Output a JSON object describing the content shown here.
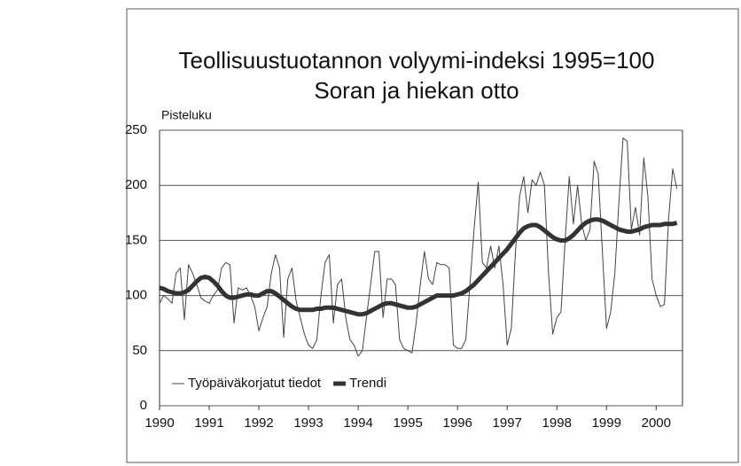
{
  "chart_data": {
    "type": "line",
    "title": "Teollisuustuotannon volyymi-indeksi 1995=100",
    "subtitle": "Soran ja hiekan otto",
    "y_label": "Pisteluku",
    "xlim": [
      1990,
      2000.53
    ],
    "xticks": [
      1990,
      1991,
      1992,
      1993,
      1994,
      1995,
      1996,
      1997,
      1998,
      1999,
      2000
    ],
    "ylim": [
      0,
      250
    ],
    "yticks": [
      0,
      50,
      100,
      150,
      200,
      250
    ],
    "grid": true,
    "legend": "lower-left",
    "x": [
      1990,
      1990.083,
      1990.167,
      1990.25,
      1990.333,
      1990.417,
      1990.5,
      1990.583,
      1990.667,
      1990.75,
      1990.833,
      1990.917,
      1991,
      1991.083,
      1991.167,
      1991.25,
      1991.333,
      1991.417,
      1991.5,
      1991.583,
      1991.667,
      1991.75,
      1991.833,
      1991.917,
      1992,
      1992.083,
      1992.167,
      1992.25,
      1992.333,
      1992.417,
      1992.5,
      1992.583,
      1992.667,
      1992.75,
      1992.833,
      1992.917,
      1993,
      1993.083,
      1993.167,
      1993.25,
      1993.333,
      1993.417,
      1993.5,
      1993.583,
      1993.667,
      1993.75,
      1993.833,
      1993.917,
      1994,
      1994.083,
      1994.167,
      1994.25,
      1994.333,
      1994.417,
      1994.5,
      1994.583,
      1994.667,
      1994.75,
      1994.833,
      1994.917,
      1995,
      1995.083,
      1995.167,
      1995.25,
      1995.333,
      1995.417,
      1995.5,
      1995.583,
      1995.667,
      1995.75,
      1995.833,
      1995.917,
      1996,
      1996.083,
      1996.167,
      1996.25,
      1996.333,
      1996.417,
      1996.5,
      1996.583,
      1996.667,
      1996.75,
      1996.833,
      1996.917,
      1997,
      1997.083,
      1997.167,
      1997.25,
      1997.333,
      1997.417,
      1997.5,
      1997.583,
      1997.667,
      1997.75,
      1997.833,
      1997.917,
      1998,
      1998.083,
      1998.167,
      1998.25,
      1998.333,
      1998.417,
      1998.5,
      1998.583,
      1998.667,
      1998.75,
      1998.833,
      1998.917,
      1999,
      1999.083,
      1999.167,
      1999.25,
      1999.333,
      1999.417,
      1999.5,
      1999.583,
      1999.667,
      1999.75,
      1999.833,
      1999.917,
      2000,
      2000.083,
      2000.167,
      2000.25,
      2000.333,
      2000.417
    ],
    "series": [
      {
        "name": "Työpäiväkorjatut tiedot",
        "color": "#444",
        "width": 1,
        "values": [
          93,
          100,
          97,
          93,
          120,
          125,
          78,
          128,
          120,
          110,
          98,
          95,
          93,
          100,
          105,
          125,
          130,
          128,
          75,
          107,
          105,
          107,
          100,
          90,
          68,
          80,
          90,
          120,
          137,
          125,
          62,
          115,
          125,
          95,
          80,
          65,
          55,
          52,
          60,
          100,
          130,
          137,
          75,
          110,
          115,
          80,
          60,
          55,
          45,
          50,
          80,
          110,
          140,
          140,
          80,
          115,
          115,
          110,
          60,
          52,
          50,
          48,
          75,
          110,
          140,
          115,
          110,
          130,
          128,
          128,
          125,
          55,
          52,
          52,
          60,
          110,
          160,
          203,
          130,
          125,
          145,
          125,
          145,
          110,
          55,
          70,
          140,
          190,
          208,
          175,
          205,
          200,
          212,
          200,
          120,
          65,
          80,
          85,
          150,
          208,
          165,
          200,
          165,
          150,
          160,
          222,
          210,
          140,
          70,
          85,
          120,
          185,
          243,
          240,
          160,
          180,
          155,
          225,
          190,
          115,
          100,
          90,
          92,
          170,
          215,
          197
        ]
      },
      {
        "name": "Trendi",
        "color": "#333",
        "width": 5,
        "values": [
          107,
          106,
          104,
          103,
          102,
          102,
          103,
          105,
          109,
          113,
          116,
          117,
          116,
          113,
          109,
          104,
          100,
          98,
          98,
          99,
          100,
          101,
          101,
          100,
          100,
          102,
          104,
          104,
          102,
          99,
          96,
          93,
          90,
          88,
          87,
          87,
          87,
          87,
          88,
          88,
          89,
          89,
          89,
          88,
          87,
          86,
          85,
          84,
          83,
          83,
          84,
          86,
          88,
          90,
          92,
          93,
          93,
          92,
          91,
          90,
          89,
          89,
          90,
          92,
          94,
          96,
          98,
          100,
          100,
          100,
          100,
          100,
          101,
          102,
          104,
          107,
          110,
          114,
          118,
          122,
          126,
          130,
          134,
          138,
          142,
          147,
          152,
          157,
          161,
          163,
          164,
          164,
          162,
          159,
          156,
          153,
          151,
          150,
          150,
          152,
          155,
          159,
          163,
          166,
          168,
          169,
          169,
          168,
          166,
          164,
          162,
          160,
          159,
          158,
          158,
          159,
          160,
          162,
          163,
          164,
          164,
          164,
          165,
          165,
          165,
          166
        ]
      }
    ]
  }
}
